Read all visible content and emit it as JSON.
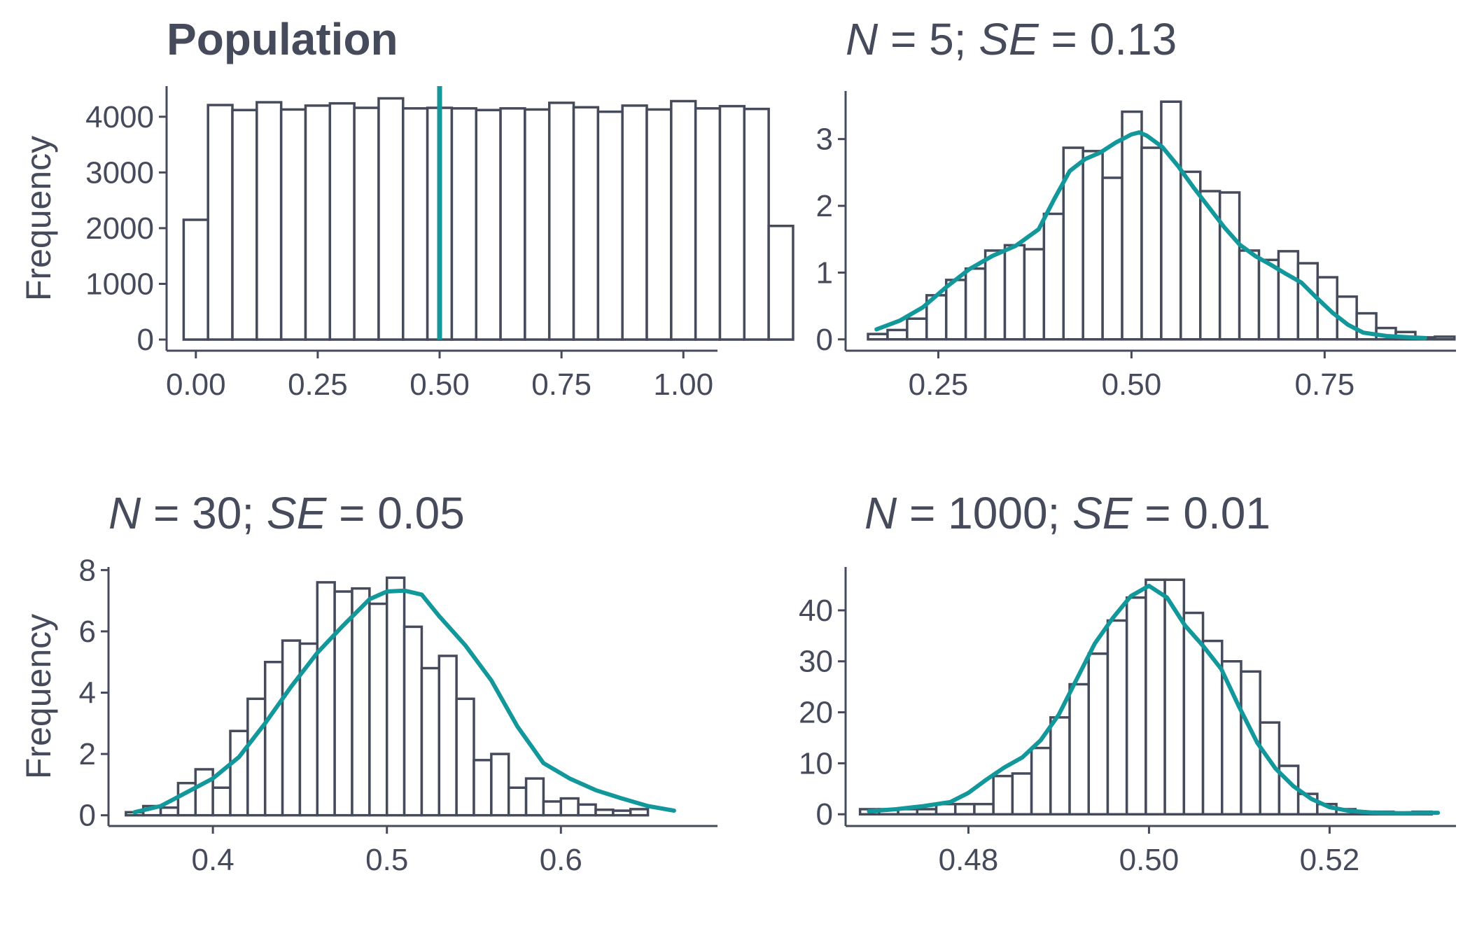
{
  "colors": {
    "ink": "#464b5c",
    "accent": "#12979b",
    "bar_fill": "#ffffff"
  },
  "chart_data": [
    {
      "type": "bar",
      "title_parts": [
        {
          "text": "Population",
          "style": "bold"
        }
      ],
      "ylabel": "Frequency",
      "xlim": [
        -0.06,
        1.07
      ],
      "ylim": [
        -200,
        4550
      ],
      "xticks": [
        0,
        0.25,
        0.5,
        0.75,
        1
      ],
      "xtick_labels": [
        "0.00",
        "0.25",
        "0.50",
        "0.75",
        "1.00"
      ],
      "yticks": [
        0,
        1000,
        2000,
        3000,
        4000
      ],
      "ytick_labels": [
        "0",
        "1000",
        "2000",
        "3000",
        "4000"
      ],
      "bins": {
        "start": -0.025,
        "width": 0.05
      },
      "values": [
        2150,
        4210,
        4120,
        4260,
        4130,
        4200,
        4240,
        4160,
        4330,
        4150,
        4160,
        4150,
        4120,
        4150,
        4130,
        4250,
        4170,
        4090,
        4200,
        4130,
        4280,
        4150,
        4190,
        4140,
        2040
      ],
      "vline": 0.5
    },
    {
      "type": "bar",
      "title_parts": [
        {
          "text": "N",
          "style": "italic"
        },
        {
          "text": " = 5; ",
          "style": "normal"
        },
        {
          "text": "SE",
          "style": "italic"
        },
        {
          "text": " = 0.13",
          "style": "normal"
        }
      ],
      "ylabel": "",
      "xlim": [
        0.13,
        0.92
      ],
      "ylim": [
        -0.17,
        3.72
      ],
      "xticks": [
        0.25,
        0.5,
        0.75
      ],
      "xtick_labels": [
        "0.25",
        "0.50",
        "0.75"
      ],
      "yticks": [
        0,
        1,
        2,
        3
      ],
      "ytick_labels": [
        "0",
        "1",
        "2",
        "3"
      ],
      "bins": {
        "start": 0.159,
        "width": 0.0253
      },
      "values": [
        0.08,
        0.14,
        0.31,
        0.66,
        0.89,
        1.06,
        1.33,
        1.41,
        1.35,
        1.88,
        2.87,
        2.82,
        2.42,
        3.41,
        2.87,
        3.56,
        2.51,
        2.22,
        2.2,
        1.33,
        1.19,
        1.32,
        1.14,
        0.93,
        0.64,
        0.39,
        0.17,
        0.11,
        0.03,
        0.04
      ],
      "density_x": [
        0.17,
        0.2,
        0.23,
        0.26,
        0.29,
        0.32,
        0.35,
        0.38,
        0.4,
        0.42,
        0.44,
        0.46,
        0.48,
        0.5,
        0.51,
        0.52,
        0.54,
        0.56,
        0.58,
        0.6,
        0.62,
        0.64,
        0.66,
        0.68,
        0.7,
        0.72,
        0.74,
        0.76,
        0.78,
        0.8,
        0.83,
        0.86,
        0.88
      ],
      "density_y": [
        0.15,
        0.28,
        0.48,
        0.78,
        1.05,
        1.25,
        1.4,
        1.65,
        2.1,
        2.52,
        2.7,
        2.8,
        2.95,
        3.07,
        3.1,
        3.05,
        2.88,
        2.6,
        2.28,
        1.98,
        1.68,
        1.42,
        1.25,
        1.12,
        0.98,
        0.85,
        0.62,
        0.4,
        0.22,
        0.1,
        0.05,
        0.03,
        0.02
      ]
    },
    {
      "type": "bar",
      "title_parts": [
        {
          "text": "N",
          "style": "italic"
        },
        {
          "text": " = 30; ",
          "style": "normal"
        },
        {
          "text": "SE",
          "style": "italic"
        },
        {
          "text": " = 0.05",
          "style": "normal"
        }
      ],
      "ylabel": "Frequency",
      "xlim": [
        0.34,
        0.69
      ],
      "ylim": [
        -0.35,
        8.1
      ],
      "xticks": [
        0.4,
        0.5,
        0.6
      ],
      "xtick_labels": [
        "0.4",
        "0.5",
        "0.6"
      ],
      "yticks": [
        0,
        2,
        4,
        6,
        8
      ],
      "ytick_labels": [
        "0",
        "2",
        "4",
        "6",
        "8"
      ],
      "bins": {
        "start": 0.35,
        "width": 0.01
      },
      "values": [
        0.1,
        0.3,
        0.25,
        1.05,
        1.5,
        0.9,
        2.75,
        3.8,
        5.0,
        5.7,
        5.6,
        7.6,
        7.3,
        7.4,
        6.9,
        7.75,
        6.15,
        4.8,
        5.2,
        3.8,
        1.8,
        2.0,
        0.9,
        1.2,
        0.45,
        0.55,
        0.35,
        0.18,
        0.15,
        0.2
      ],
      "density_x": [
        0.355,
        0.37,
        0.385,
        0.4,
        0.415,
        0.43,
        0.445,
        0.46,
        0.475,
        0.49,
        0.5,
        0.51,
        0.52,
        0.53,
        0.545,
        0.56,
        0.575,
        0.59,
        0.605,
        0.62,
        0.635,
        0.65,
        0.665
      ],
      "density_y": [
        0.1,
        0.3,
        0.75,
        1.2,
        1.9,
        3.0,
        4.2,
        5.3,
        6.2,
        7.05,
        7.3,
        7.33,
        7.2,
        6.5,
        5.55,
        4.4,
        2.9,
        1.7,
        1.2,
        0.82,
        0.55,
        0.3,
        0.15
      ]
    },
    {
      "type": "bar",
      "title_parts": [
        {
          "text": "N",
          "style": "italic"
        },
        {
          "text": " = 1000; ",
          "style": "normal"
        },
        {
          "text": "SE",
          "style": "italic"
        },
        {
          "text": " = 0.01",
          "style": "normal"
        }
      ],
      "ylabel": "",
      "xlim": [
        0.4664,
        0.534
      ],
      "ylim": [
        -2.3,
        48.5
      ],
      "xticks": [
        0.48,
        0.5,
        0.52
      ],
      "xtick_labels": [
        "0.48",
        "0.50",
        "0.52"
      ],
      "yticks": [
        0,
        10,
        20,
        30,
        40
      ],
      "ytick_labels": [
        "0",
        "10",
        "20",
        "30",
        "40"
      ],
      "bins": {
        "start": 0.468,
        "width": 0.00211
      },
      "values": [
        1,
        1,
        1,
        1,
        2,
        2,
        2,
        7.5,
        8,
        13,
        19,
        25.5,
        31.5,
        38,
        42.5,
        46,
        46,
        39.5,
        34,
        30,
        28,
        18,
        9.5,
        4,
        2,
        1,
        0.5,
        0.5,
        0.3,
        0.5
      ],
      "density_x": [
        0.469,
        0.472,
        0.475,
        0.478,
        0.48,
        0.482,
        0.484,
        0.486,
        0.488,
        0.49,
        0.492,
        0.494,
        0.496,
        0.498,
        0.5,
        0.502,
        0.504,
        0.506,
        0.508,
        0.51,
        0.512,
        0.514,
        0.516,
        0.518,
        0.52,
        0.522,
        0.525,
        0.528,
        0.532
      ],
      "density_y": [
        0.6,
        1.0,
        1.6,
        2.4,
        4.2,
        6.8,
        9.2,
        11.2,
        14.5,
        19.5,
        26.5,
        33.5,
        38.5,
        42.8,
        44.8,
        42.5,
        37.0,
        33.0,
        28.5,
        21.0,
        14.0,
        9.0,
        5.5,
        3.0,
        1.4,
        0.7,
        0.3,
        0.2,
        0.3
      ]
    }
  ]
}
